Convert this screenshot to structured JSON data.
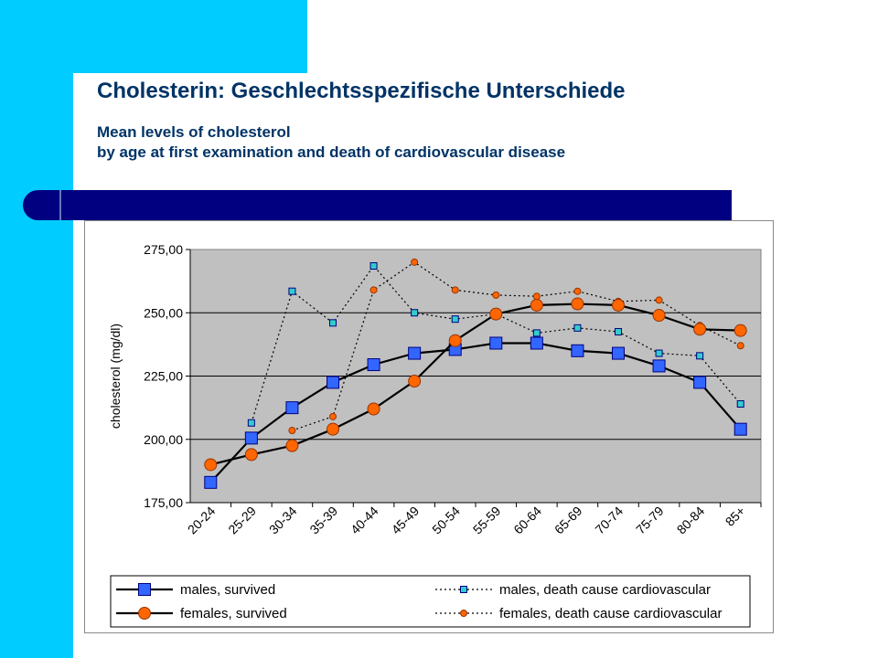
{
  "slide": {
    "title": "Cholesterin: Geschlechtsspezifische Unterschiede",
    "subtitle_line1": "Mean levels of cholesterol",
    "subtitle_line2": "by age at first examination and death of cardiovascular disease"
  },
  "colors": {
    "accent_cyan": "#00ccff",
    "band_navy": "#000080",
    "title_text": "#003366",
    "males_fill": "#3366ff",
    "males_cvd_fill": "#33cccc",
    "females_fill": "#ff6600",
    "plot_background": "#c0c0c0"
  },
  "chart_data": {
    "type": "line",
    "title": "",
    "xlabel": "",
    "ylabel": "cholesterol (mg/dl)",
    "ylim": [
      175,
      275
    ],
    "yticks": [
      175,
      200,
      225,
      250,
      275
    ],
    "ytick_labels": [
      "175,00",
      "200,00",
      "225,00",
      "250,00",
      "275,00"
    ],
    "grid": "horizontal",
    "legend_position": "bottom",
    "categories": [
      "20-24",
      "25-29",
      "30-34",
      "35-39",
      "40-44",
      "45-49",
      "50-54",
      "55-59",
      "60-64",
      "65-69",
      "70-74",
      "75-79",
      "80-84",
      "85+"
    ],
    "series": [
      {
        "name": "males, survived",
        "line": "solid",
        "marker": "square",
        "color": "#3366ff",
        "values": [
          183,
          200.5,
          212.5,
          222.5,
          229.5,
          234,
          235.5,
          238,
          238,
          235,
          234,
          229,
          222.5,
          204
        ]
      },
      {
        "name": "males, death cause cardiovascular",
        "line": "dotted",
        "marker": "small-square",
        "color": "#33cccc",
        "values": [
          null,
          206.5,
          258.5,
          246,
          268.5,
          250,
          247.5,
          249.5,
          242,
          244,
          242.5,
          234,
          233,
          214
        ]
      },
      {
        "name": "females, survived",
        "line": "solid",
        "marker": "circle",
        "color": "#ff6600",
        "values": [
          190,
          194,
          197.5,
          204,
          212,
          223,
          239,
          249.5,
          253,
          253.5,
          253,
          249,
          243.5,
          243
        ]
      },
      {
        "name": "females, death cause cardiovascular",
        "line": "dotted",
        "marker": "small-circle",
        "color": "#ff6600",
        "values": [
          null,
          null,
          203.5,
          209,
          259,
          270,
          259,
          257,
          256.5,
          258.5,
          254.5,
          255,
          245,
          237
        ]
      }
    ]
  }
}
